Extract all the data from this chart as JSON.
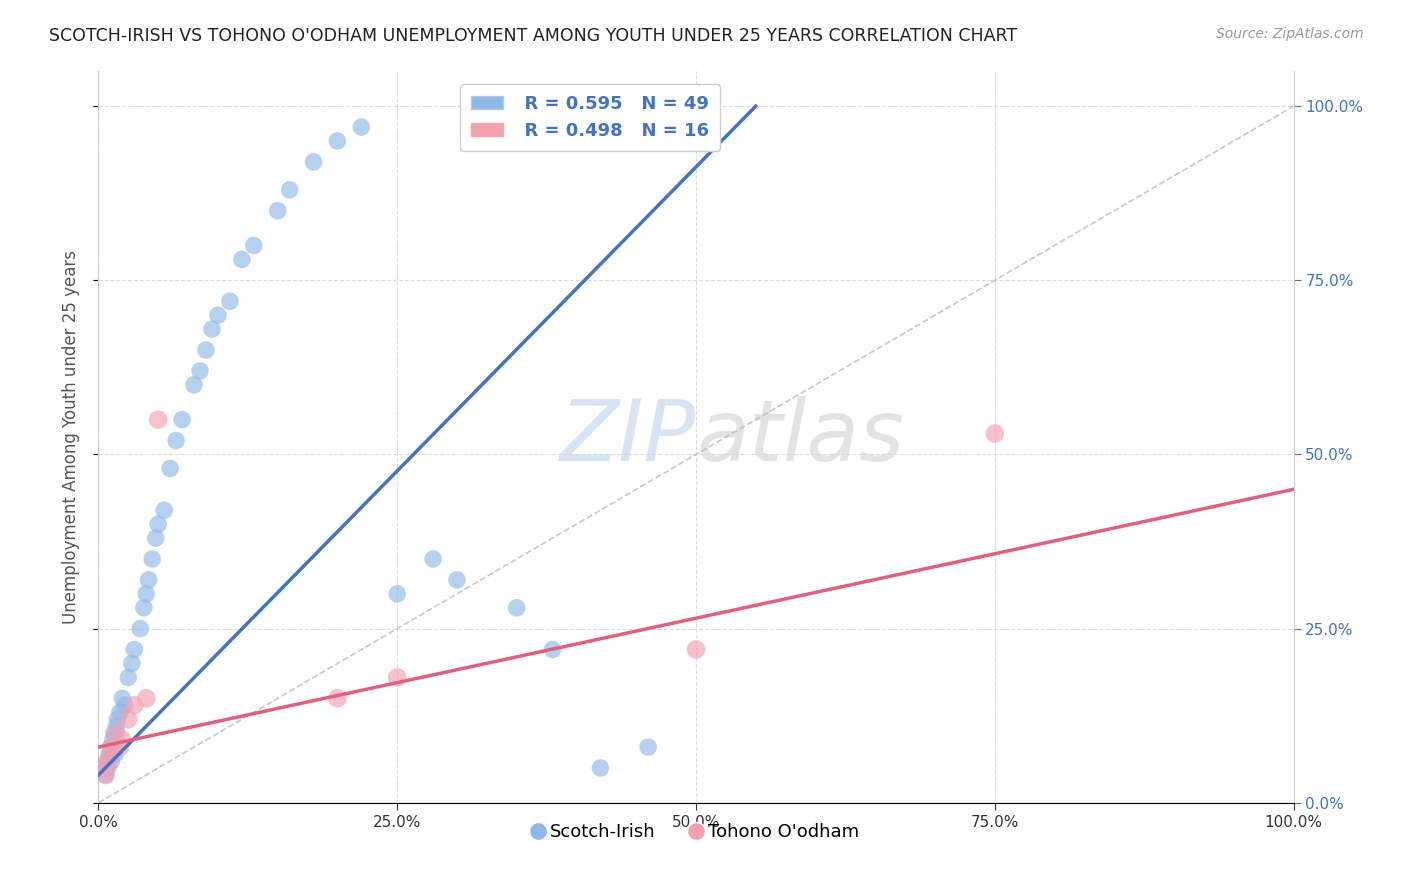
{
  "title": "SCOTCH-IRISH VS TOHONO O'ODHAM UNEMPLOYMENT AMONG YOUTH UNDER 25 YEARS CORRELATION CHART",
  "source": "Source: ZipAtlas.com",
  "ylabel": "Unemployment Among Youth under 25 years",
  "xlim": [
    0,
    1.0
  ],
  "ylim": [
    0,
    1.05
  ],
  "xticks": [
    0.0,
    0.25,
    0.5,
    0.75,
    1.0
  ],
  "xticklabels": [
    "0.0%",
    "25.0%",
    "50.0%",
    "75.0%",
    "100.0%"
  ],
  "yticks": [
    0.0,
    0.25,
    0.5,
    0.75,
    1.0
  ],
  "yticklabels": [
    "0.0%",
    "25.0%",
    "50.0%",
    "75.0%",
    "100.0%"
  ],
  "legend_R1": "R = 0.595",
  "legend_N1": "N = 49",
  "legend_R2": "R = 0.498",
  "legend_N2": "N = 16",
  "blue_color": "#8FB8E8",
  "pink_color": "#F4A0B0",
  "blue_line_color": "#4472C4",
  "pink_line_color": "#E06080",
  "watermark_zip": "ZIP",
  "watermark_atlas": "atlas",
  "scotch_irish_x": [
    0.005,
    0.006,
    0.007,
    0.008,
    0.009,
    0.01,
    0.011,
    0.012,
    0.013,
    0.014,
    0.015,
    0.016,
    0.018,
    0.02,
    0.022,
    0.025,
    0.028,
    0.03,
    0.035,
    0.038,
    0.04,
    0.042,
    0.045,
    0.048,
    0.05,
    0.055,
    0.06,
    0.065,
    0.07,
    0.08,
    0.085,
    0.09,
    0.095,
    0.1,
    0.11,
    0.12,
    0.13,
    0.15,
    0.16,
    0.18,
    0.2,
    0.22,
    0.25,
    0.28,
    0.3,
    0.35,
    0.38,
    0.42,
    0.46
  ],
  "scotch_irish_y": [
    0.05,
    0.04,
    0.06,
    0.05,
    0.07,
    0.08,
    0.06,
    0.09,
    0.1,
    0.07,
    0.11,
    0.12,
    0.13,
    0.15,
    0.14,
    0.18,
    0.2,
    0.22,
    0.25,
    0.28,
    0.3,
    0.32,
    0.35,
    0.38,
    0.4,
    0.42,
    0.48,
    0.52,
    0.55,
    0.6,
    0.62,
    0.65,
    0.68,
    0.7,
    0.72,
    0.78,
    0.8,
    0.85,
    0.88,
    0.92,
    0.95,
    0.97,
    0.3,
    0.35,
    0.32,
    0.28,
    0.22,
    0.05,
    0.08
  ],
  "tohono_x": [
    0.005,
    0.006,
    0.008,
    0.01,
    0.012,
    0.015,
    0.018,
    0.02,
    0.025,
    0.03,
    0.04,
    0.05,
    0.2,
    0.25,
    0.5,
    0.75
  ],
  "tohono_y": [
    0.05,
    0.04,
    0.06,
    0.07,
    0.08,
    0.1,
    0.08,
    0.09,
    0.12,
    0.14,
    0.15,
    0.55,
    0.15,
    0.18,
    0.22,
    0.53
  ],
  "blue_trendline_x": [
    0.0,
    0.55
  ],
  "blue_trendline_y": [
    0.04,
    1.0
  ],
  "pink_trendline_x": [
    0.0,
    1.0
  ],
  "pink_trendline_y": [
    0.08,
    0.45
  ],
  "background_color": "#FFFFFF",
  "grid_color": "#DDDDDD"
}
